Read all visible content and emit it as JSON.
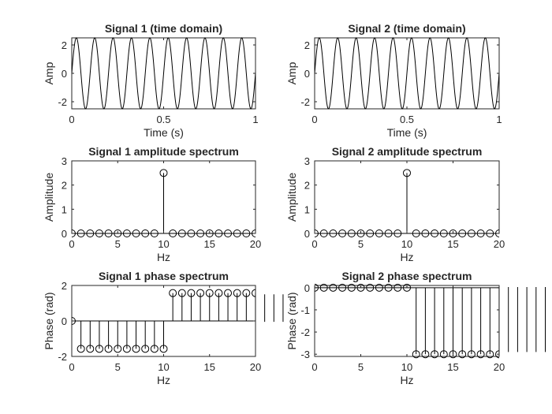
{
  "chart_data": [
    {
      "type": "line",
      "title": "Signal 1 (time domain)",
      "xlabel": "Time (s)",
      "ylabel": "Amp",
      "xlim": [
        0,
        1
      ],
      "ylim": [
        -2.5,
        2.5
      ],
      "xticks": [
        0,
        0.5,
        1
      ],
      "yticks": [
        -2,
        0,
        2
      ],
      "grid": false,
      "signal": {
        "amplitude": 2.5,
        "frequency_hz": 10,
        "phase_deg": 0
      }
    },
    {
      "type": "line",
      "title": "Signal 2 (time domain)",
      "xlabel": "Time (s)",
      "ylabel": "Amp",
      "xlim": [
        0,
        1
      ],
      "ylim": [
        -2.5,
        2.5
      ],
      "xticks": [
        0,
        0.5,
        1
      ],
      "yticks": [
        -2,
        0,
        2
      ],
      "grid": false,
      "signal": {
        "amplitude": 2.5,
        "frequency_hz": 10,
        "phase_deg": 0
      }
    },
    {
      "type": "stem",
      "title": "Signal 1 amplitude spectrum",
      "xlabel": "Hz",
      "ylabel": "Amplitude",
      "xlim": [
        0,
        20
      ],
      "ylim": [
        0,
        3
      ],
      "xticks": [
        0,
        5,
        10,
        15,
        20
      ],
      "yticks": [
        0,
        1,
        2,
        3
      ],
      "grid": false,
      "x": [
        0,
        1,
        2,
        3,
        4,
        5,
        6,
        7,
        8,
        9,
        10,
        11,
        12,
        13,
        14,
        15,
        16,
        17,
        18,
        19,
        20
      ],
      "y": [
        0,
        0,
        0,
        0,
        0,
        0,
        0,
        0,
        0,
        0,
        2.5,
        0,
        0,
        0,
        0,
        0,
        0,
        0,
        0,
        0,
        0
      ]
    },
    {
      "type": "stem",
      "title": "Signal 2 amplitude spectrum",
      "xlabel": "Hz",
      "ylabel": "Amplitude",
      "xlim": [
        0,
        20
      ],
      "ylim": [
        0,
        3
      ],
      "xticks": [
        0,
        5,
        10,
        15,
        20
      ],
      "yticks": [
        0,
        1,
        2,
        3
      ],
      "grid": false,
      "x": [
        0,
        1,
        2,
        3,
        4,
        5,
        6,
        7,
        8,
        9,
        10,
        11,
        12,
        13,
        14,
        15,
        16,
        17,
        18,
        19,
        20
      ],
      "y": [
        0,
        0,
        0,
        0,
        0,
        0,
        0,
        0,
        0,
        0,
        2.5,
        0,
        0,
        0,
        0,
        0,
        0,
        0,
        0,
        0,
        0
      ]
    },
    {
      "type": "stem",
      "title": "Signal 1 phase spectrum",
      "xlabel": "Hz",
      "ylabel": "Phase (rad)",
      "xlim": [
        0,
        20
      ],
      "ylim": [
        -2,
        2
      ],
      "xticks": [
        0,
        5,
        10,
        15,
        20
      ],
      "yticks": [
        -2,
        0,
        2
      ],
      "grid": false,
      "x": [
        0,
        1,
        2,
        3,
        4,
        5,
        6,
        7,
        8,
        9,
        10,
        11,
        12,
        13,
        14,
        15,
        16,
        17,
        18,
        19,
        20
      ],
      "y": [
        0,
        -1.57,
        -1.57,
        -1.57,
        -1.57,
        -1.57,
        -1.57,
        -1.57,
        -1.57,
        -1.57,
        -1.57,
        1.57,
        1.57,
        1.57,
        1.57,
        1.57,
        1.57,
        1.57,
        1.57,
        1.57,
        1.57
      ],
      "overflow_x": [
        21,
        22,
        23
      ]
    },
    {
      "type": "stem",
      "title": "Signal 2 phase spectrum",
      "xlabel": "Hz",
      "ylabel": "Phase (rad)",
      "xlim": [
        0,
        20
      ],
      "ylim": [
        -3.1,
        0.1
      ],
      "xticks": [
        0,
        5,
        10,
        15,
        20
      ],
      "yticks": [
        -3,
        -2,
        -1,
        0
      ],
      "grid": false,
      "x": [
        0,
        1,
        2,
        3,
        4,
        5,
        6,
        7,
        8,
        9,
        10,
        11,
        12,
        13,
        14,
        15,
        16,
        17,
        18,
        19,
        20
      ],
      "y": [
        0,
        0,
        0,
        0,
        0,
        0,
        0,
        0,
        0,
        0,
        0,
        -3.0,
        -3.0,
        -3.0,
        -3.0,
        -3.0,
        -3.0,
        -3.0,
        -3.0,
        -3.0,
        -3.0
      ],
      "overflow_x": [
        21,
        22,
        23,
        24,
        25
      ]
    }
  ]
}
